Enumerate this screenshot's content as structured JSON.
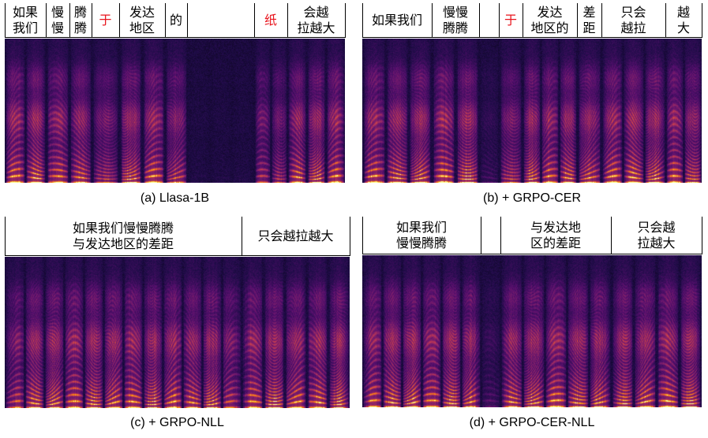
{
  "panels": [
    {
      "id": "a",
      "caption": "(a) Llasa-1B",
      "highlight_color": "#e8141c",
      "segments": [
        {
          "lines": [
            "如果",
            "我们"
          ],
          "highlight": false
        },
        {
          "lines": [
            "慢",
            "慢"
          ],
          "highlight": false
        },
        {
          "lines": [
            "腾",
            "腾"
          ],
          "highlight": false
        },
        {
          "lines": [
            "于"
          ],
          "highlight": true
        },
        {
          "lines": [
            "发达",
            "地区"
          ],
          "highlight": false
        },
        {
          "lines": [
            "的"
          ],
          "highlight": false
        },
        {
          "lines": [
            ""
          ],
          "highlight": false
        },
        {
          "lines": [
            "纸"
          ],
          "highlight": true
        },
        {
          "lines": [
            "会越",
            "拉越大"
          ],
          "highlight": false
        }
      ]
    },
    {
      "id": "b",
      "caption": "(b) + GRPO-CER",
      "highlight_color": "#e8141c",
      "segments": [
        {
          "lines": [
            "如果我们"
          ],
          "highlight": false
        },
        {
          "lines": [
            "慢慢",
            "腾腾"
          ],
          "highlight": false
        },
        {
          "lines": [
            ""
          ],
          "highlight": false
        },
        {
          "lines": [
            "于"
          ],
          "highlight": true
        },
        {
          "lines": [
            "发达",
            "地区的"
          ],
          "highlight": false
        },
        {
          "lines": [
            "差",
            "距"
          ],
          "highlight": false
        },
        {
          "lines": [
            "只会",
            "越拉"
          ],
          "highlight": false
        },
        {
          "lines": [
            "越",
            "大"
          ],
          "highlight": false
        }
      ]
    },
    {
      "id": "c",
      "caption": "(c) + GRPO-NLL",
      "highlight_color": "#e8141c",
      "segments": [
        {
          "lines": [
            "如果我们慢慢腾腾",
            "与发达地区的差距"
          ],
          "highlight": false
        },
        {
          "lines": [
            "只会越拉越大"
          ],
          "highlight": false
        }
      ]
    },
    {
      "id": "d",
      "caption": "(d) + GRPO-CER-NLL",
      "highlight_color": "#e8141c",
      "segments": [
        {
          "lines": [
            "如果我们",
            "慢慢腾腾"
          ],
          "highlight": false
        },
        {
          "lines": [
            ""
          ],
          "highlight": false
        },
        {
          "lines": [
            "与发达地",
            "区的差距"
          ],
          "highlight": false
        },
        {
          "lines": [
            "只会越",
            "拉越大"
          ],
          "highlight": false
        }
      ]
    }
  ]
}
